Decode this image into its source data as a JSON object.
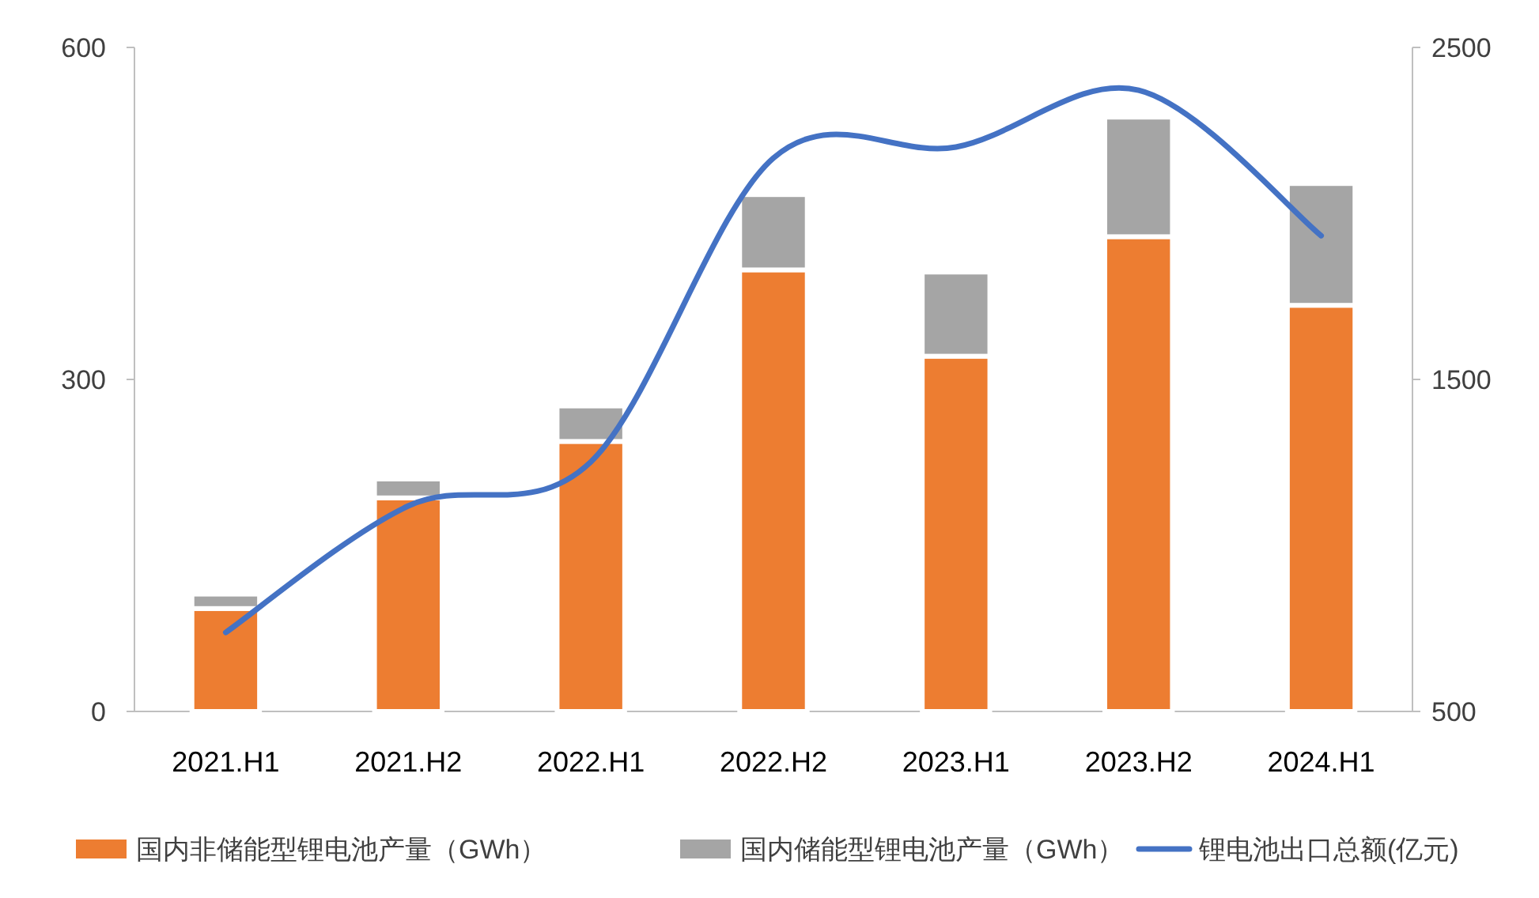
{
  "chart_data": {
    "type": "bar",
    "stacked": true,
    "categories": [
      "2021.H1",
      "2021.H2",
      "2022.H1",
      "2022.H2",
      "2023.H1",
      "2023.H2",
      "2024.H1"
    ],
    "series": [
      {
        "name": "国内非储能型锂电池产量（GWh）",
        "color": "#ed7d31",
        "values": [
          93,
          193,
          244,
          399,
          321,
          429,
          367
        ]
      },
      {
        "name": "国内储能型锂电池产量（GWh）",
        "color": "#a5a5a5",
        "values": [
          13,
          17,
          32,
          68,
          76,
          108,
          110
        ]
      },
      {
        "name": "锂电池出口总额(亿元)",
        "type": "line",
        "axis": "y2",
        "color": "#4472c4",
        "values": [
          738,
          1119,
          1252,
          2167,
          2200,
          2371,
          1933
        ]
      }
    ],
    "ylim": [
      0,
      600
    ],
    "yticks": [
      0,
      300,
      600
    ],
    "y2lim": [
      500,
      2500
    ],
    "y2ticks": [
      500,
      1500,
      2500
    ],
    "legend": "bottom",
    "grid": false
  }
}
